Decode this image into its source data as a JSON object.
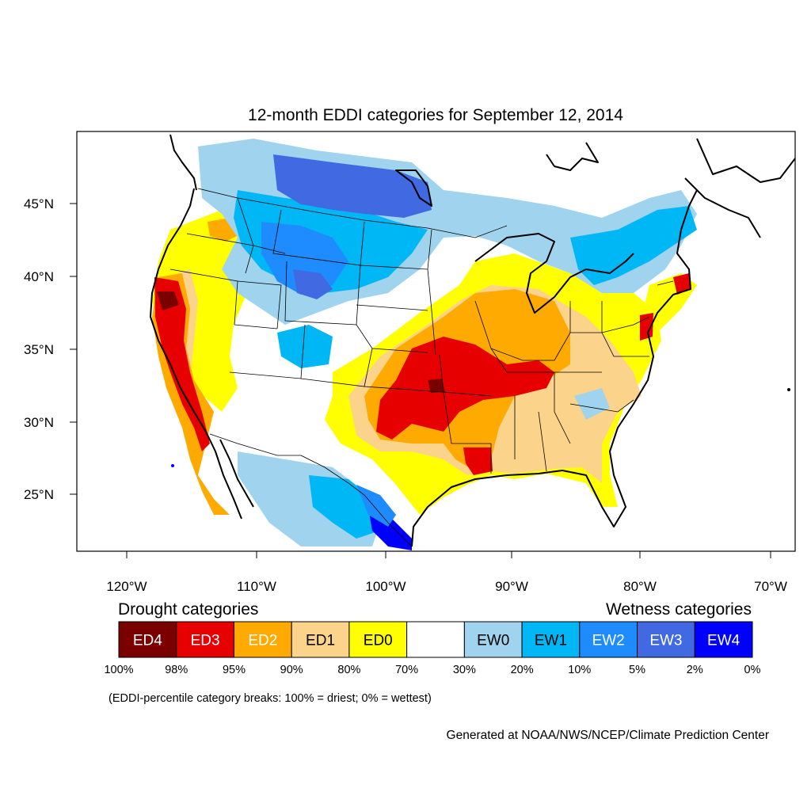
{
  "title": "12-month EDDI categories for September 12, 2014",
  "map": {
    "lon_labels": [
      "120°W",
      "110°W",
      "100°W",
      "90°W",
      "80°W",
      "70°W"
    ],
    "lat_labels": [
      "45°N",
      "40°N",
      "35°N",
      "30°N",
      "25°N"
    ]
  },
  "legend": {
    "drought_heading": "Drought categories",
    "wetness_heading": "Wetness categories",
    "categories": [
      {
        "label": "ED4",
        "color": "#7a0000",
        "text_color": "#ffffff"
      },
      {
        "label": "ED3",
        "color": "#e60000",
        "text_color": "#ffffff"
      },
      {
        "label": "ED2",
        "color": "#ffaa00",
        "text_color": "#ffffff"
      },
      {
        "label": "ED1",
        "color": "#fcd38a",
        "text_color": "#000000"
      },
      {
        "label": "ED0",
        "color": "#ffff00",
        "text_color": "#000000"
      },
      {
        "label": "",
        "color": "#ffffff",
        "text_color": "#000000"
      },
      {
        "label": "EW0",
        "color": "#9fd3ee",
        "text_color": "#000000"
      },
      {
        "label": "EW1",
        "color": "#00b7f5",
        "text_color": "#000000"
      },
      {
        "label": "EW2",
        "color": "#1e8cff",
        "text_color": "#ffffff"
      },
      {
        "label": "EW3",
        "color": "#4169e1",
        "text_color": "#ffffff"
      },
      {
        "label": "EW4",
        "color": "#0000ff",
        "text_color": "#ffffff"
      }
    ],
    "breaks": [
      "100%",
      "98%",
      "95%",
      "90%",
      "80%",
      "70%",
      "30%",
      "20%",
      "10%",
      "5%",
      "2%",
      "0%"
    ],
    "note": "(EDDI-percentile category breaks: 100% = driest; 0% = wettest)"
  },
  "credit": "Generated at NOAA/NWS/NCEP/Climate Prediction Center"
}
